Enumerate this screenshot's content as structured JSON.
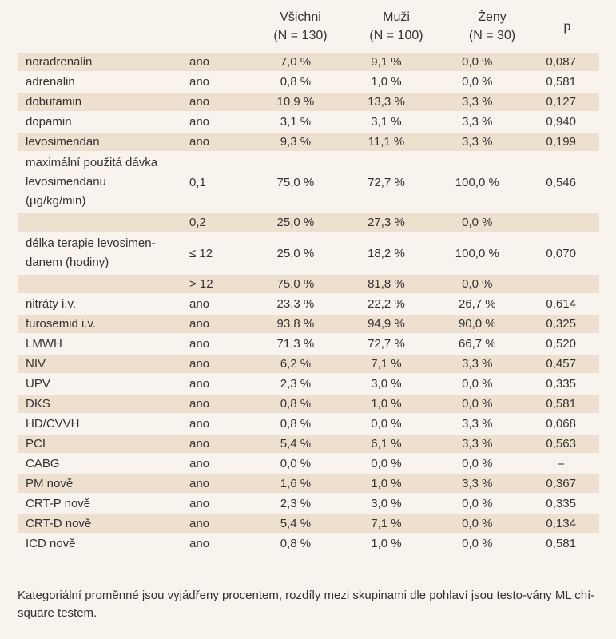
{
  "table": {
    "headers": [
      {
        "line1": "Všichni",
        "line2": "(N = 130)"
      },
      {
        "line1": "Muži",
        "line2": "(N = 100)"
      },
      {
        "line1": "Ženy",
        "line2": "(N = 30)"
      },
      {
        "line1": "p",
        "line2": ""
      }
    ],
    "rows": [
      {
        "label": "noradrenalin",
        "cat": "ano",
        "all": "7,0 %",
        "men": "9,1 %",
        "women": "0,0 %",
        "p": "0,087"
      },
      {
        "label": "adrenalin",
        "cat": "ano",
        "all": "0,8 %",
        "men": "1,0 %",
        "women": "0,0 %",
        "p": "0,581"
      },
      {
        "label": "dobutamin",
        "cat": "ano",
        "all": "10,9 %",
        "men": "13,3 %",
        "women": "3,3 %",
        "p": "0,127"
      },
      {
        "label": "dopamin",
        "cat": "ano",
        "all": "3,1 %",
        "men": "3,1 %",
        "women": "3,3 %",
        "p": "0,940"
      },
      {
        "label": "levosimendan",
        "cat": "ano",
        "all": "9,3 %",
        "men": "11,1 %",
        "women": "3,3 %",
        "p": "0,199"
      },
      {
        "label_lines": [
          "maximální použitá dávka",
          "levosimendanu",
          "(µg/kg/min)"
        ],
        "cat": "0,1",
        "all": "75,0 %",
        "men": "72,7 %",
        "women": "100,0 %",
        "p": "0,546"
      },
      {
        "label": "",
        "cat": "0,2",
        "all": "25,0 %",
        "men": "27,3 %",
        "women": "0,0 %",
        "p": ""
      },
      {
        "label_lines": [
          "délka terapie levosimen-",
          "danem (hodiny)"
        ],
        "cat": "≤ 12",
        "all": "25,0 %",
        "men": "18,2 %",
        "women": "100,0 %",
        "p": "0,070"
      },
      {
        "label": "",
        "cat": "> 12",
        "all": "75,0 %",
        "men": "81,8 %",
        "women": "0,0 %",
        "p": ""
      },
      {
        "label": "nitráty i.v.",
        "cat": "ano",
        "all": "23,3 %",
        "men": "22,2 %",
        "women": "26,7 %",
        "p": "0,614"
      },
      {
        "label": "furosemid i.v.",
        "cat": "ano",
        "all": "93,8 %",
        "men": "94,9 %",
        "women": "90,0 %",
        "p": "0,325"
      },
      {
        "label": "LMWH",
        "cat": "ano",
        "all": "71,3 %",
        "men": "72,7 %",
        "women": "66,7 %",
        "p": "0,520"
      },
      {
        "label": "NIV",
        "cat": "ano",
        "all": "6,2 %",
        "men": "7,1 %",
        "women": "3,3 %",
        "p": "0,457"
      },
      {
        "label": "UPV",
        "cat": "ano",
        "all": "2,3 %",
        "men": "3,0 %",
        "women": "0,0 %",
        "p": "0,335"
      },
      {
        "label": "DKS",
        "cat": "ano",
        "all": "0,8 %",
        "men": "1,0 %",
        "women": "0,0 %",
        "p": "0,581"
      },
      {
        "label": "HD/CVVH",
        "cat": "ano",
        "all": "0,8 %",
        "men": "0,0 %",
        "women": "3,3 %",
        "p": "0,068"
      },
      {
        "label": "PCI",
        "cat": "ano",
        "all": "5,4 %",
        "men": "6,1 %",
        "women": "3,3 %",
        "p": "0,563"
      },
      {
        "label": "CABG",
        "cat": "ano",
        "all": "0,0 %",
        "men": "0,0 %",
        "women": "0,0 %",
        "p": "–"
      },
      {
        "label": "PM nově",
        "cat": "ano",
        "all": "1,6 %",
        "men": "1,0 %",
        "women": "3,3 %",
        "p": "0,367"
      },
      {
        "label": "CRT-P nově",
        "cat": "ano",
        "all": "2,3 %",
        "men": "3,0 %",
        "women": "0,0 %",
        "p": "0,335"
      },
      {
        "label": "CRT-D nově",
        "cat": "ano",
        "all": "5,4 %",
        "men": "7,1 %",
        "women": "0,0 %",
        "p": "0,134"
      },
      {
        "label": "ICD nově",
        "cat": "ano",
        "all": "0,8 %",
        "men": "1,0 %",
        "women": "0,0 %",
        "p": "0,581"
      }
    ],
    "shaded_rows": [
      0,
      2,
      4,
      6,
      8,
      10,
      12,
      14,
      16,
      18,
      20
    ]
  },
  "footnote": "Kategoriální proměnné jsou vyjádřeny procentem, rozdíly mezi skupinami dle pohlaví jsou testo-vány ML chí-square testem.",
  "colors": {
    "background": "#f8f3ec",
    "row_shade": "#ede0cf"
  }
}
